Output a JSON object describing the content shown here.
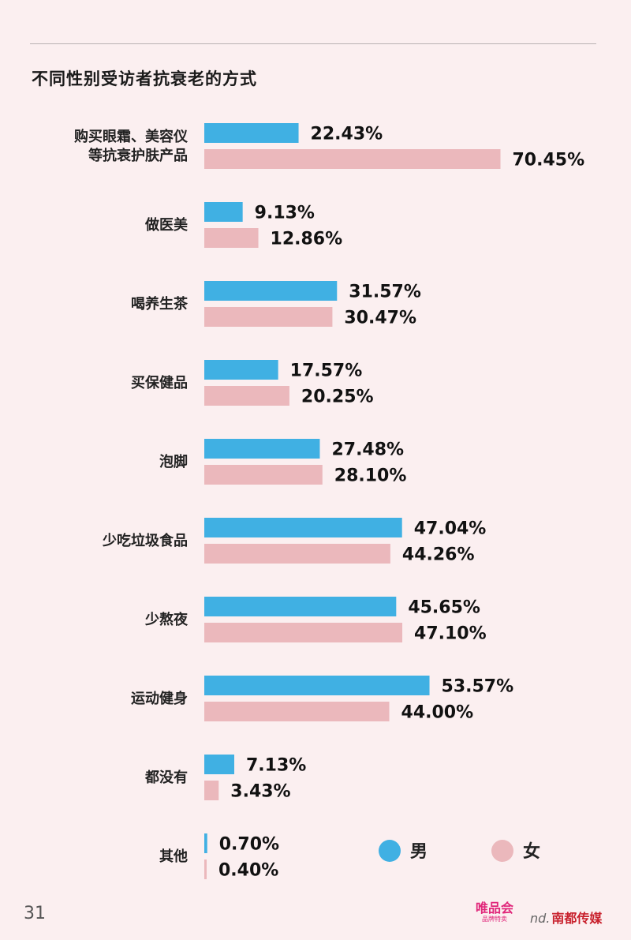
{
  "chart_data": {
    "type": "bar",
    "orientation": "horizontal",
    "title": "不同性别受访者抗衰老的方式",
    "categories": [
      [
        "购买眼霜、美容仪",
        "等抗衰护肤产品"
      ],
      [
        "做医美"
      ],
      [
        "喝养生茶"
      ],
      [
        "买保健品"
      ],
      [
        "泡脚"
      ],
      [
        "少吃垃圾食品"
      ],
      [
        "少熬夜"
      ],
      [
        "运动健身"
      ],
      [
        "都没有"
      ],
      [
        "其他"
      ]
    ],
    "series": [
      {
        "name": "男",
        "color": "#40b0e3",
        "values": [
          22.43,
          9.13,
          31.57,
          17.57,
          27.48,
          47.04,
          45.65,
          53.57,
          7.13,
          0.7
        ],
        "labels": [
          "22.43%",
          "9.13%",
          "31.57%",
          "17.57%",
          "27.48%",
          "47.04%",
          "45.65%",
          "53.57%",
          "7.13%",
          "0.70%"
        ]
      },
      {
        "name": "女",
        "color": "#ebb8bc",
        "values": [
          70.45,
          12.86,
          30.47,
          20.25,
          28.1,
          44.26,
          47.1,
          44.0,
          3.43,
          0.4
        ],
        "labels": [
          "70.45%",
          "12.86%",
          "30.47%",
          "20.25%",
          "28.10%",
          "44.26%",
          "47.10%",
          "44.00%",
          "3.43%",
          "0.40%"
        ]
      }
    ],
    "legend_position": "bottom-right",
    "grid": false
  },
  "page": {
    "number": "31"
  },
  "footer": {
    "logo_vip_main": "唯品会",
    "logo_vip_sub": "品牌特卖",
    "logo_nd_mark": "nd.",
    "logo_nd_text": "南都传媒"
  }
}
